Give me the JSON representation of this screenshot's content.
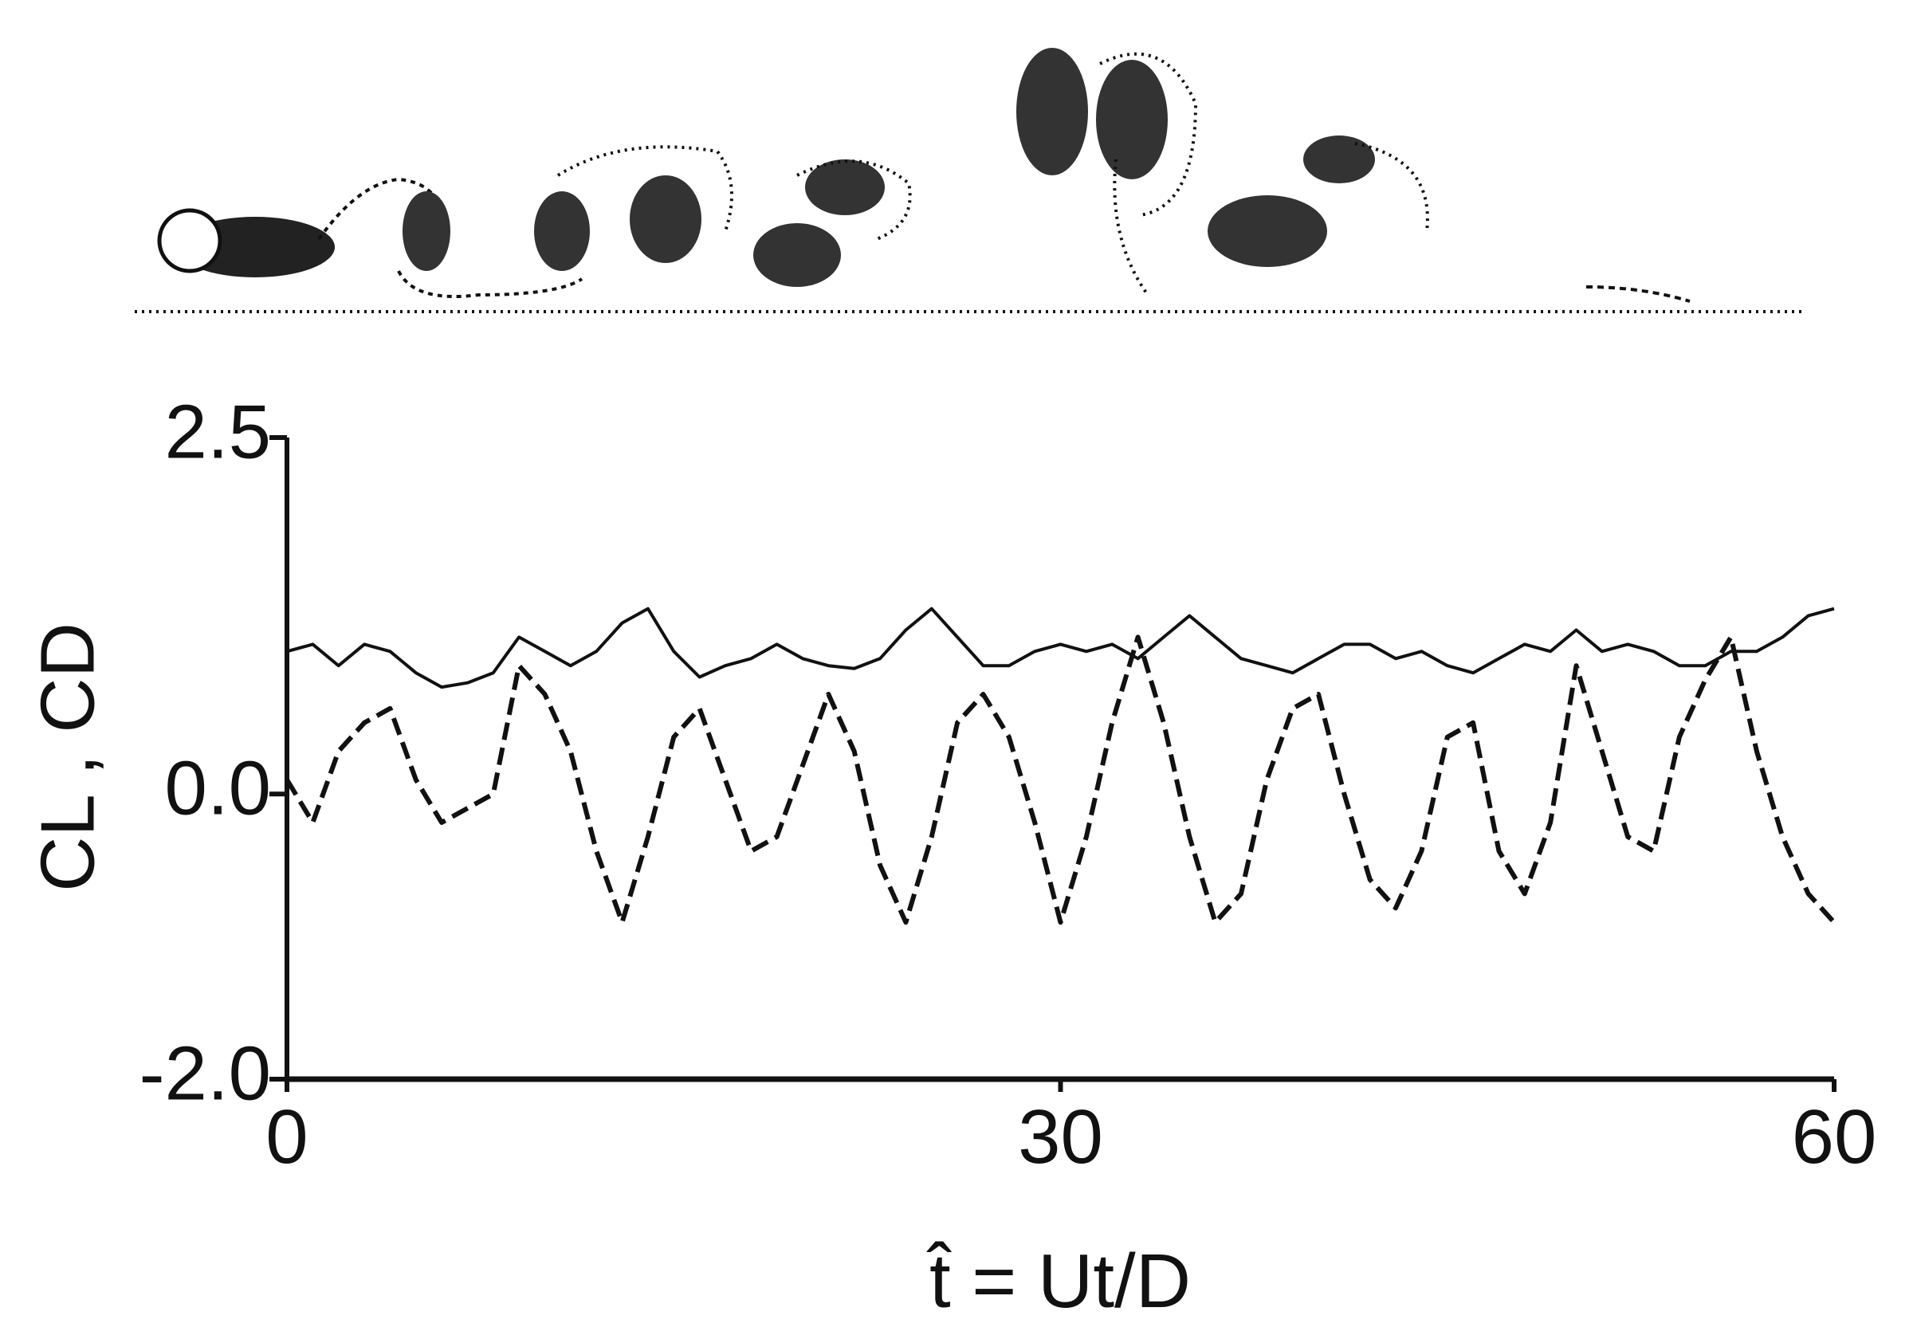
{
  "chart_data": {
    "type": "line",
    "ylabel": "CL , CD",
    "xlabel": "t̂ = Ut/D",
    "xlim": [
      0,
      60
    ],
    "xticks": [
      0,
      30,
      60
    ],
    "ylim": [
      -2,
      2.5
    ],
    "yticks": [
      2.5,
      {
        "value": 0,
        "label": "0.0"
      },
      {
        "value": -2,
        "label": "-2.0"
      }
    ],
    "x": [
      0,
      1,
      2,
      3,
      4,
      5,
      6,
      7,
      8,
      9,
      10,
      11,
      12,
      13,
      14,
      15,
      16,
      17,
      18,
      19,
      20,
      21,
      22,
      23,
      24,
      25,
      26,
      27,
      28,
      29,
      30,
      31,
      32,
      33,
      34,
      35,
      36,
      37,
      38,
      39,
      40,
      41,
      42,
      43,
      44,
      45,
      46,
      47,
      48,
      49,
      50,
      51,
      52,
      53,
      54,
      55,
      56,
      57,
      58,
      59,
      60
    ],
    "series": [
      {
        "color": "#111111",
        "dashed": false,
        "values": [
          1.0,
          1.05,
          0.9,
          1.05,
          1.0,
          0.85,
          0.75,
          0.78,
          0.85,
          1.1,
          1.0,
          0.9,
          1.0,
          1.2,
          1.3,
          1.0,
          0.82,
          0.9,
          0.95,
          1.05,
          0.95,
          0.9,
          0.88,
          0.95,
          1.15,
          1.3,
          1.1,
          0.9,
          0.9,
          1.0,
          1.05,
          1.0,
          1.05,
          0.95,
          1.1,
          1.25,
          1.1,
          0.95,
          0.9,
          0.85,
          0.95,
          1.05,
          1.05,
          0.95,
          1.0,
          0.9,
          0.85,
          0.95,
          1.05,
          1.0,
          1.15,
          1.0,
          1.05,
          1.0,
          0.9,
          0.9,
          1.0,
          1.0,
          1.1,
          1.25,
          1.3
        ]
      },
      {
        "color": "#111111",
        "dashed": true,
        "values": [
          0.1,
          -0.2,
          0.3,
          0.5,
          0.6,
          0.1,
          -0.2,
          -0.1,
          0.0,
          0.9,
          0.7,
          0.3,
          -0.4,
          -0.9,
          -0.3,
          0.4,
          0.6,
          0.1,
          -0.4,
          -0.3,
          0.2,
          0.7,
          0.3,
          -0.5,
          -0.9,
          -0.3,
          0.5,
          0.7,
          0.4,
          -0.2,
          -0.9,
          -0.3,
          0.5,
          1.1,
          0.5,
          -0.3,
          -0.9,
          -0.7,
          0.1,
          0.6,
          0.7,
          0.0,
          -0.6,
          -0.8,
          -0.4,
          0.4,
          0.5,
          -0.4,
          -0.7,
          -0.2,
          0.9,
          0.3,
          -0.3,
          -0.4,
          0.4,
          0.8,
          1.1,
          0.3,
          -0.3,
          -0.7,
          -0.9
        ]
      }
    ]
  }
}
